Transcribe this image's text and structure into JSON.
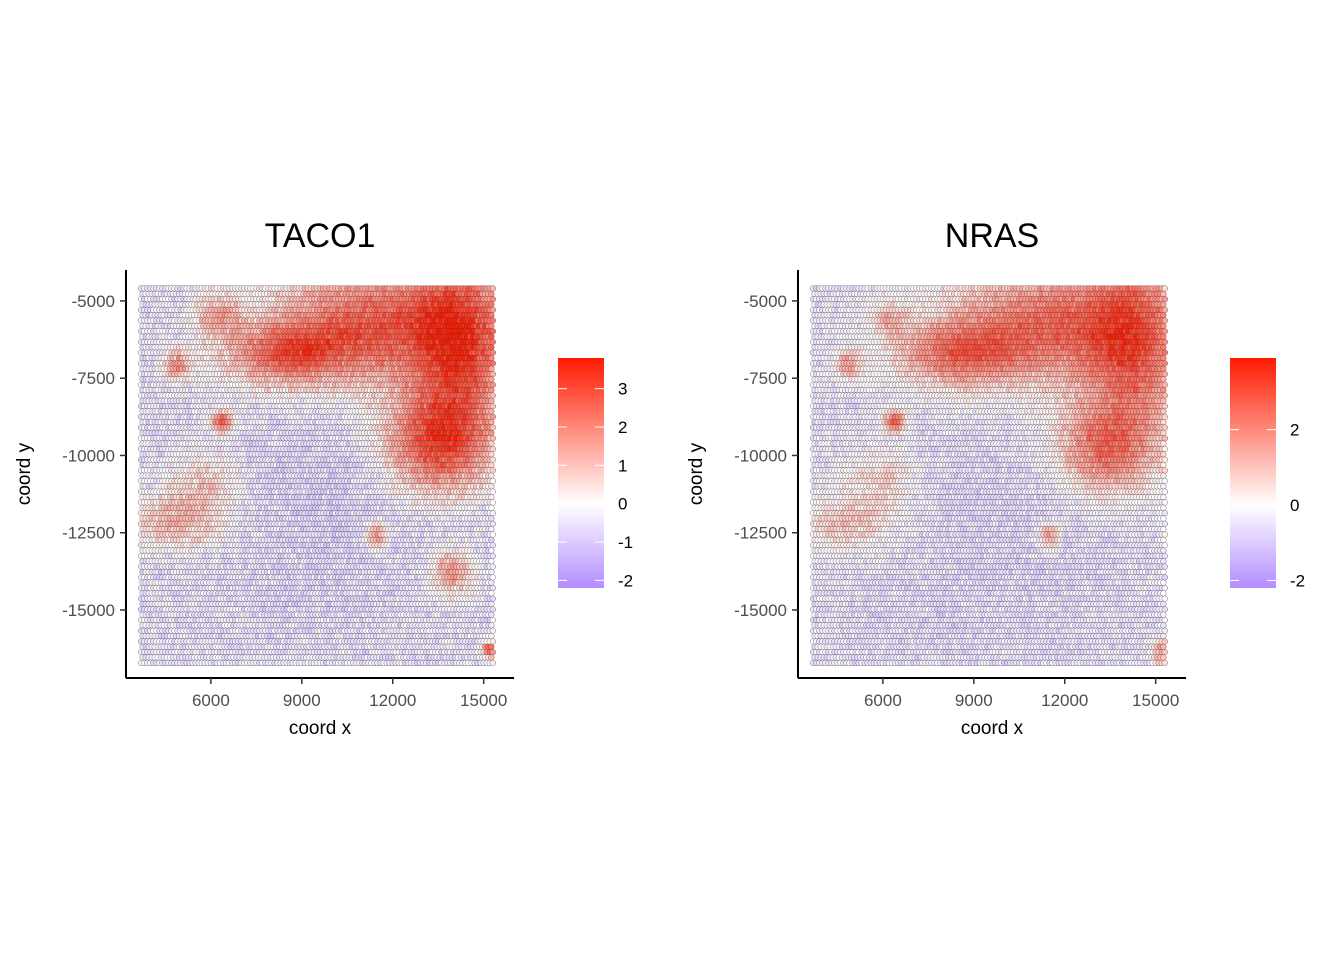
{
  "chart_data": [
    {
      "type": "scatter",
      "subtype": "spatial-hex-spots",
      "title": "TACO1",
      "xlabel": "coord x",
      "ylabel": "coord y",
      "xlim": [
        3200,
        16000
      ],
      "ylim": [
        -17200,
        -4000
      ],
      "x_ticks": [
        6000,
        9000,
        12000,
        15000
      ],
      "x_tick_labels": [
        "6000",
        "9000",
        "12000",
        "15000"
      ],
      "y_ticks": [
        -5000,
        -7500,
        -10000,
        -12500,
        -15000
      ],
      "y_tick_labels": [
        "-5000",
        "-7500",
        "-10000",
        "-12500",
        "-15000"
      ],
      "spot_extent": {
        "x": [
          3700,
          15300
        ],
        "y": [
          -16800,
          -4600
        ]
      },
      "color_scale": {
        "type": "gradient2",
        "low": "#b38cff",
        "mid": "#ffffff",
        "high": "#ff1a00",
        "midpoint": 0,
        "limits": [
          -2.2,
          3.8
        ],
        "ticks": [
          -2,
          -1,
          0,
          1,
          2,
          3
        ],
        "tick_labels": [
          "-2",
          "-1",
          "0",
          "1",
          "2",
          "3"
        ]
      },
      "pattern": {
        "high_regions": [
          {
            "cx": 11500,
            "cy": -5800,
            "sx": 2300,
            "sy": 1300,
            "v": 2.6
          },
          {
            "cx": 8500,
            "cy": -6700,
            "sx": 1400,
            "sy": 700,
            "v": 2.2
          },
          {
            "cx": 14300,
            "cy": -6500,
            "sx": 1100,
            "sy": 2200,
            "v": 2.5
          },
          {
            "cx": 13400,
            "cy": -9600,
            "sx": 1200,
            "sy": 1100,
            "v": 2.7
          },
          {
            "cx": 6300,
            "cy": -5500,
            "sx": 500,
            "sy": 500,
            "v": 1.3
          },
          {
            "cx": 4900,
            "cy": -7100,
            "sx": 300,
            "sy": 350,
            "v": 1.8
          },
          {
            "cx": 6400,
            "cy": -8900,
            "sx": 250,
            "sy": 250,
            "v": 2.8
          },
          {
            "cx": 4800,
            "cy": -12200,
            "sx": 1100,
            "sy": 600,
            "v": 1.1
          },
          {
            "cx": 5800,
            "cy": -11000,
            "sx": 800,
            "sy": 700,
            "v": 0.8
          },
          {
            "cx": 11500,
            "cy": -12600,
            "sx": 250,
            "sy": 300,
            "v": 2.0
          },
          {
            "cx": 14000,
            "cy": -13800,
            "sx": 500,
            "sy": 500,
            "v": 1.6
          },
          {
            "cx": 15200,
            "cy": -16300,
            "sx": 200,
            "sy": 200,
            "v": 2.2
          }
        ],
        "low_regions": [
          {
            "cx": 10400,
            "cy": -11500,
            "sx": 2500,
            "sy": 2500,
            "v": -1.0
          },
          {
            "cx": 8500,
            "cy": -15000,
            "sx": 800,
            "sy": 800,
            "v": -0.7
          }
        ],
        "base": -0.4,
        "noise": 0.55,
        "seed": 7
      }
    },
    {
      "type": "scatter",
      "subtype": "spatial-hex-spots",
      "title": "NRAS",
      "xlabel": "coord x",
      "ylabel": "coord y",
      "xlim": [
        3200,
        16000
      ],
      "ylim": [
        -17200,
        -4000
      ],
      "x_ticks": [
        6000,
        9000,
        12000,
        15000
      ],
      "x_tick_labels": [
        "6000",
        "9000",
        "12000",
        "15000"
      ],
      "y_ticks": [
        -5000,
        -7500,
        -10000,
        -12500,
        -15000
      ],
      "y_tick_labels": [
        "-5000",
        "-7500",
        "-10000",
        "-12500",
        "-15000"
      ],
      "spot_extent": {
        "x": [
          3700,
          15300
        ],
        "y": [
          -16800,
          -4600
        ]
      },
      "color_scale": {
        "type": "gradient2",
        "low": "#b38cff",
        "mid": "#ffffff",
        "high": "#ff1a00",
        "midpoint": 0,
        "limits": [
          -2.2,
          3.9
        ],
        "ticks": [
          -2,
          0,
          2
        ],
        "tick_labels": [
          "-2",
          "0",
          "2"
        ]
      },
      "pattern": {
        "high_regions": [
          {
            "cx": 11500,
            "cy": -5800,
            "sx": 2300,
            "sy": 1300,
            "v": 2.4
          },
          {
            "cx": 8500,
            "cy": -6700,
            "sx": 1400,
            "sy": 700,
            "v": 2.0
          },
          {
            "cx": 14300,
            "cy": -6500,
            "sx": 1100,
            "sy": 2200,
            "v": 2.3
          },
          {
            "cx": 13300,
            "cy": -9800,
            "sx": 1100,
            "sy": 1000,
            "v": 2.1
          },
          {
            "cx": 6300,
            "cy": -5600,
            "sx": 400,
            "sy": 400,
            "v": 1.0
          },
          {
            "cx": 4900,
            "cy": -7100,
            "sx": 300,
            "sy": 350,
            "v": 1.5
          },
          {
            "cx": 6400,
            "cy": -8900,
            "sx": 250,
            "sy": 250,
            "v": 2.8
          },
          {
            "cx": 4800,
            "cy": -12200,
            "sx": 1100,
            "sy": 600,
            "v": 0.9
          },
          {
            "cx": 6000,
            "cy": -10800,
            "sx": 800,
            "sy": 700,
            "v": 0.7
          },
          {
            "cx": 11500,
            "cy": -12600,
            "sx": 250,
            "sy": 300,
            "v": 1.8
          },
          {
            "cx": 15200,
            "cy": -16300,
            "sx": 200,
            "sy": 300,
            "v": 1.6
          }
        ],
        "low_regions": [
          {
            "cx": 10400,
            "cy": -12500,
            "sx": 3000,
            "sy": 3000,
            "v": -0.9
          },
          {
            "cx": 6500,
            "cy": -15500,
            "sx": 1500,
            "sy": 900,
            "v": -0.6
          }
        ],
        "base": -0.35,
        "noise": 0.5,
        "seed": 13
      }
    }
  ]
}
